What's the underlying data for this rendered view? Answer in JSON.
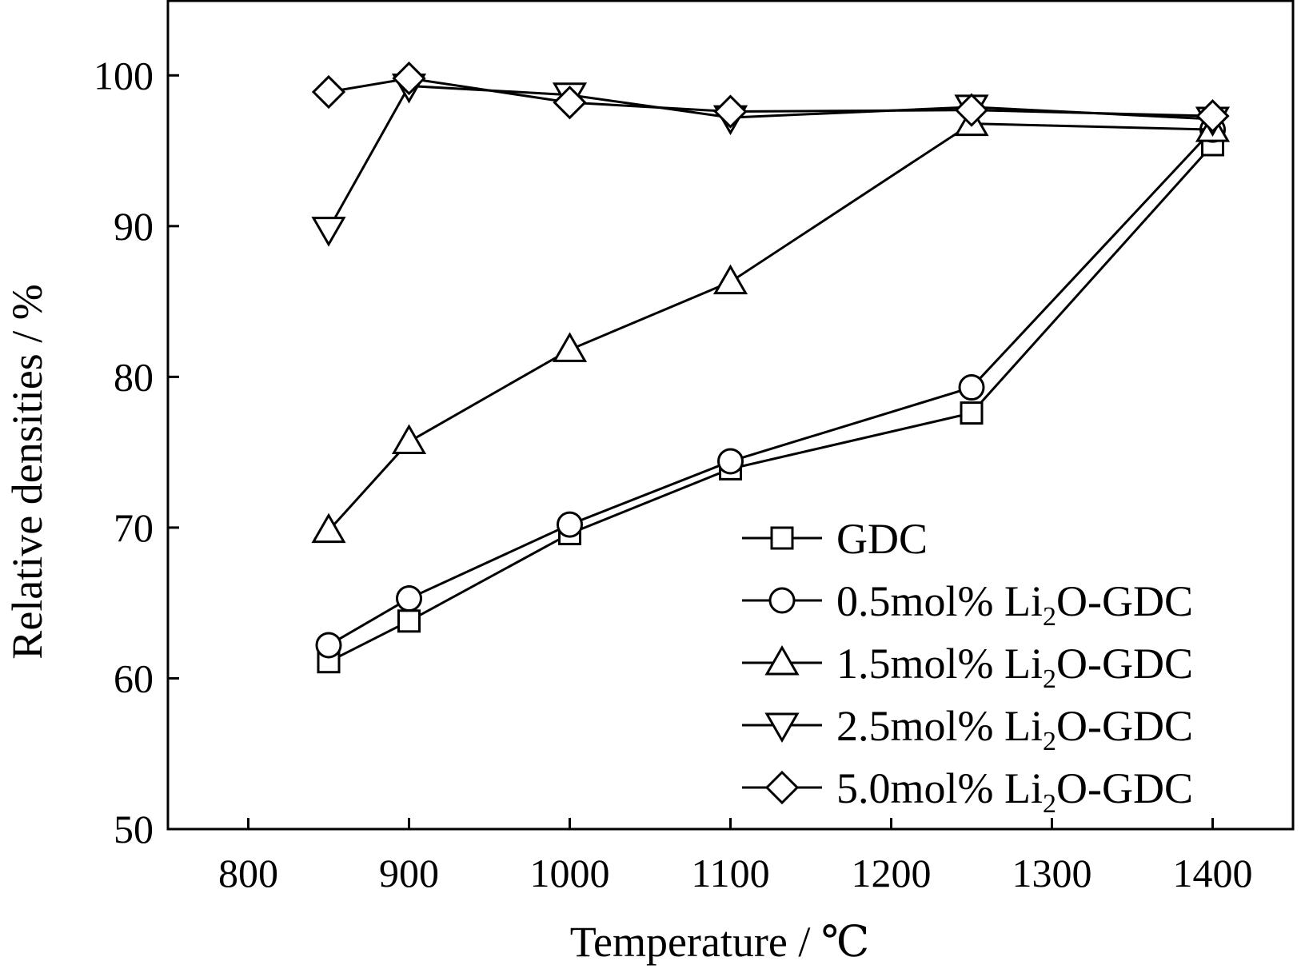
{
  "chart_data": {
    "type": "line",
    "title": "",
    "xlabel": "Temperature / ℃",
    "ylabel": "Relative densities / %",
    "xlim": [
      750,
      1450
    ],
    "ylim": [
      50,
      105
    ],
    "xticks": [
      800,
      900,
      1000,
      1100,
      1200,
      1300,
      1400
    ],
    "yticks": [
      50,
      60,
      70,
      80,
      90,
      100
    ],
    "grid": false,
    "legend_position": "bottom-right",
    "x": [
      850,
      900,
      1000,
      1100,
      1250,
      1400
    ],
    "series": [
      {
        "name": "GDC",
        "marker": "square",
        "values": [
          61.1,
          63.8,
          69.6,
          73.9,
          77.6,
          95.4
        ]
      },
      {
        "name": "0.5mol% Li2O-GDC",
        "name_main": "0.5mol% Li",
        "name_sub": "2",
        "name_tail": "O-GDC",
        "marker": "circle",
        "values": [
          62.2,
          65.3,
          70.2,
          74.4,
          79.3,
          96.4
        ]
      },
      {
        "name": "1.5mol% Li2O-GDC",
        "name_main": "1.5mol% Li",
        "name_sub": "2",
        "name_tail": "O-GDC",
        "marker": "triangle-up",
        "values": [
          69.8,
          75.7,
          81.8,
          86.3,
          96.8,
          96.4
        ]
      },
      {
        "name": "2.5mol% Li2O-GDC",
        "name_main": "2.5mol% Li",
        "name_sub": "2",
        "name_tail": "O-GDC",
        "marker": "triangle-down",
        "values": [
          89.8,
          99.3,
          98.7,
          97.2,
          97.9,
          97.1
        ]
      },
      {
        "name": "5.0mol% Li2O-GDC",
        "name_main": "5.0mol% Li",
        "name_sub": "2",
        "name_tail": "O-GDC",
        "marker": "diamond",
        "values": [
          98.9,
          99.8,
          98.2,
          97.6,
          97.7,
          97.3
        ]
      }
    ]
  },
  "colors": {
    "line": "#000000",
    "background": "#ffffff"
  }
}
